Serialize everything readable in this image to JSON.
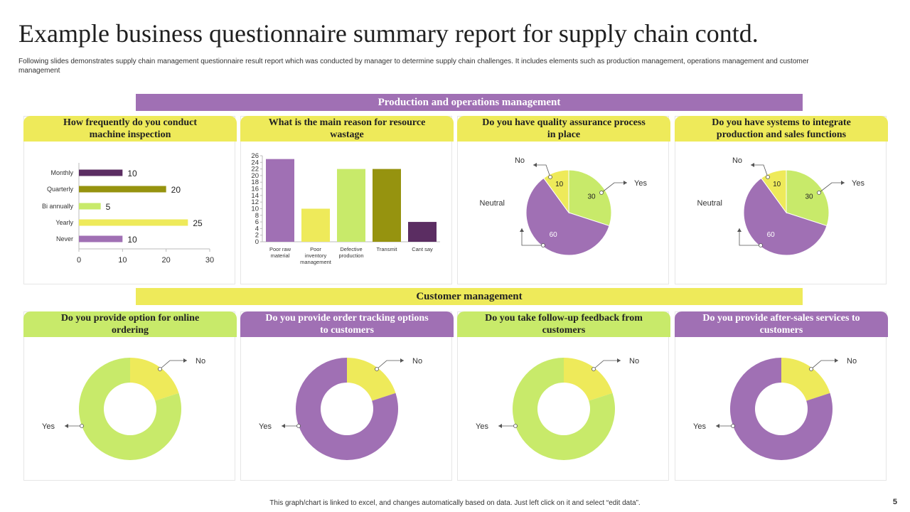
{
  "title": "Example business questionnaire summary report for supply chain contd.",
  "subtitle": "Following slides demonstrates supply chain management  questionnaire result report which was conducted by manager to determine supply chain challenges. It includes elements  such as production management,  operations management and customer management",
  "section1": "Production and operations management",
  "section2": "Customer management",
  "footer": "This graph/chart is linked to excel, and changes automatically based on data. Just left click on it and select “edit data”.",
  "page_number": "5",
  "colors": {
    "purple": "#a070b4",
    "yellow": "#eeea5a",
    "green": "#c8ea6a",
    "olive": "#96930f",
    "dark_purple": "#5b2d62"
  },
  "panels": {
    "p1": "How frequently do you conduct machine inspection",
    "p2": "What is the main reason for resource wastage",
    "p3": "Do you have quality assurance process in place",
    "p4": "Do you have systems to integrate production and sales functions",
    "p5": "Do you provide option for online ordering",
    "p6": "Do you provide order tracking options to customers",
    "p7": "Do you take follow-up feedback from customers",
    "p8": "Do you provide after-sales services to customers"
  },
  "chart_data": [
    {
      "type": "bar",
      "orientation": "horizontal",
      "title": "How frequently do you conduct machine inspection",
      "categories": [
        "Monthly",
        "Quarterly",
        "Bi annually",
        "Yearly",
        "Never"
      ],
      "values": [
        10,
        20,
        5,
        25,
        10
      ],
      "colors": [
        "#5b2d62",
        "#96930f",
        "#c8ea6a",
        "#eeea5a",
        "#a070b4"
      ],
      "xlim": [
        0,
        30
      ],
      "xticks": [
        0,
        10,
        20,
        30
      ]
    },
    {
      "type": "bar",
      "title": "What is the main reason for resource wastage",
      "categories": [
        "Poor raw material",
        "Poor inventory management",
        "Defective production",
        "Transmit",
        "Cant say"
      ],
      "values": [
        25,
        10,
        22,
        22,
        6
      ],
      "colors": [
        "#a070b4",
        "#eeea5a",
        "#c8ea6a",
        "#96930f",
        "#5b2d62"
      ],
      "ylim": [
        0,
        26
      ],
      "yticks": [
        0,
        2,
        4,
        6,
        8,
        10,
        12,
        14,
        16,
        18,
        20,
        22,
        24,
        26
      ]
    },
    {
      "type": "pie",
      "title": "Do you have quality assurance process in place",
      "labels": [
        "Yes",
        "Neutral",
        "No"
      ],
      "values": [
        30,
        60,
        10
      ],
      "colors": [
        "#c8ea6a",
        "#a070b4",
        "#eeea5a"
      ]
    },
    {
      "type": "pie",
      "title": "Do you have systems to integrate production and sales functions",
      "labels": [
        "Yes",
        "Neutral",
        "No"
      ],
      "values": [
        30,
        60,
        10
      ],
      "colors": [
        "#c8ea6a",
        "#a070b4",
        "#eeea5a"
      ]
    },
    {
      "type": "pie",
      "donut": true,
      "title": "Do you provide option for online ordering",
      "labels": [
        "No",
        "Yes"
      ],
      "values": [
        20,
        80
      ],
      "colors": [
        "#eeea5a",
        "#c8ea6a"
      ]
    },
    {
      "type": "pie",
      "donut": true,
      "title": "Do you provide order tracking options to customers",
      "labels": [
        "No",
        "Yes"
      ],
      "values": [
        20,
        80
      ],
      "colors": [
        "#eeea5a",
        "#a070b4"
      ]
    },
    {
      "type": "pie",
      "donut": true,
      "title": "Do you take follow-up feedback from customers",
      "labels": [
        "No",
        "Yes"
      ],
      "values": [
        20,
        80
      ],
      "colors": [
        "#eeea5a",
        "#c8ea6a"
      ]
    },
    {
      "type": "pie",
      "donut": true,
      "title": "Do you provide after-sales services to customers",
      "labels": [
        "No",
        "Yes"
      ],
      "values": [
        20,
        80
      ],
      "colors": [
        "#eeea5a",
        "#a070b4"
      ]
    }
  ]
}
